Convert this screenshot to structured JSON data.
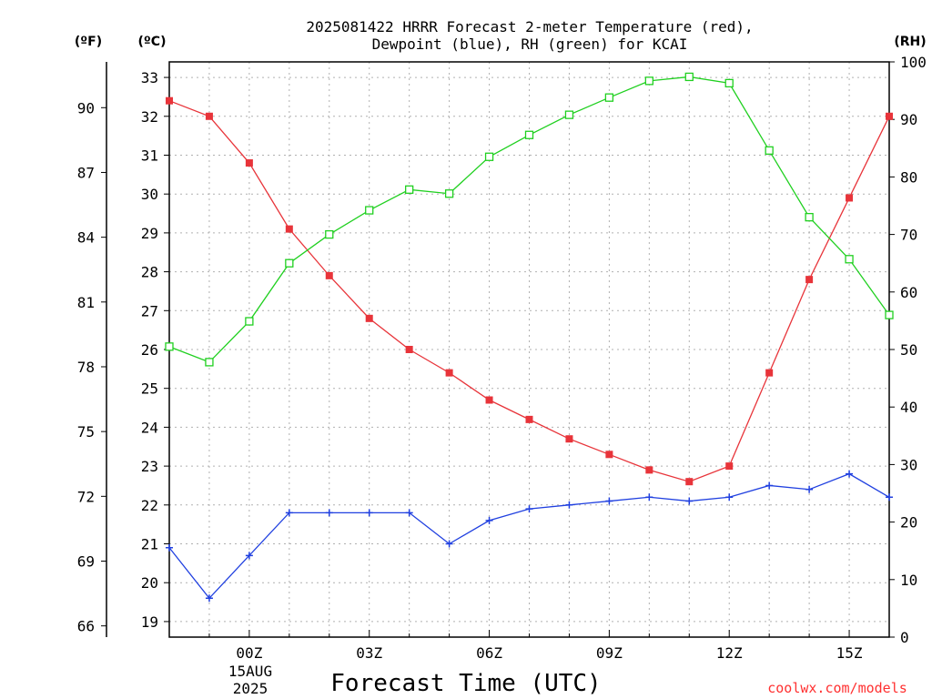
{
  "title_line1": "2025081422 HRRR Forecast 2-meter Temperature (red),",
  "title_line2": "Dewpoint (blue), RH (green) for KCAI",
  "units": {
    "fahrenheit": "(ºF)",
    "celsius": "(ºC)",
    "rh": "(RH)"
  },
  "xlabel": "Forecast Time (UTC)",
  "date_label_1": "15AUG",
  "date_label_2": "2025",
  "credit": "coolwx.com/models",
  "colors": {
    "temperature": "#e8343a",
    "dewpoint": "#2040e0",
    "rh": "#20d020",
    "grid": "#b0b0b0",
    "credit": "#ff3030"
  },
  "chart_data": {
    "type": "line",
    "x": [
      "22Z",
      "23Z",
      "00Z",
      "01Z",
      "02Z",
      "03Z",
      "04Z",
      "05Z",
      "06Z",
      "07Z",
      "08Z",
      "09Z",
      "10Z",
      "11Z",
      "12Z",
      "13Z",
      "14Z",
      "15Z",
      "16Z"
    ],
    "x_tick_labels": [
      "00Z",
      "03Z",
      "06Z",
      "09Z",
      "12Z",
      "15Z"
    ],
    "y_left_celsius": {
      "ticks": [
        19,
        20,
        21,
        22,
        23,
        24,
        25,
        26,
        27,
        28,
        29,
        30,
        31,
        32,
        33
      ],
      "range": [
        18.6,
        33.4
      ]
    },
    "y_left_fahrenheit": {
      "ticks": [
        66,
        69,
        72,
        75,
        78,
        81,
        84,
        87,
        90
      ]
    },
    "y_right_rh": {
      "ticks": [
        0,
        10,
        20,
        30,
        40,
        50,
        60,
        70,
        80,
        90,
        100
      ],
      "range": [
        0,
        100
      ]
    },
    "grid": true,
    "series": [
      {
        "name": "Temperature",
        "axis": "celsius",
        "marker": "filled-square",
        "values": [
          32.4,
          32.0,
          30.8,
          29.1,
          27.9,
          26.8,
          26.0,
          25.4,
          24.7,
          24.2,
          23.7,
          23.3,
          22.9,
          22.6,
          23.0,
          25.4,
          27.8,
          29.9,
          32.0
        ]
      },
      {
        "name": "Dewpoint",
        "axis": "celsius",
        "marker": "plus",
        "values": [
          20.9,
          19.6,
          20.7,
          21.8,
          21.8,
          21.8,
          21.8,
          21.0,
          21.6,
          21.9,
          22.0,
          22.1,
          22.2,
          22.1,
          22.2,
          22.5,
          22.4,
          22.8,
          22.2
        ]
      },
      {
        "name": "RH",
        "axis": "rh",
        "marker": "open-square",
        "values": [
          50.5,
          47.8,
          54.9,
          65.0,
          70.0,
          74.2,
          77.8,
          77.1,
          83.5,
          87.3,
          90.8,
          93.8,
          96.7,
          97.4,
          96.3,
          84.6,
          73.0,
          65.7,
          56.0
        ]
      }
    ]
  }
}
